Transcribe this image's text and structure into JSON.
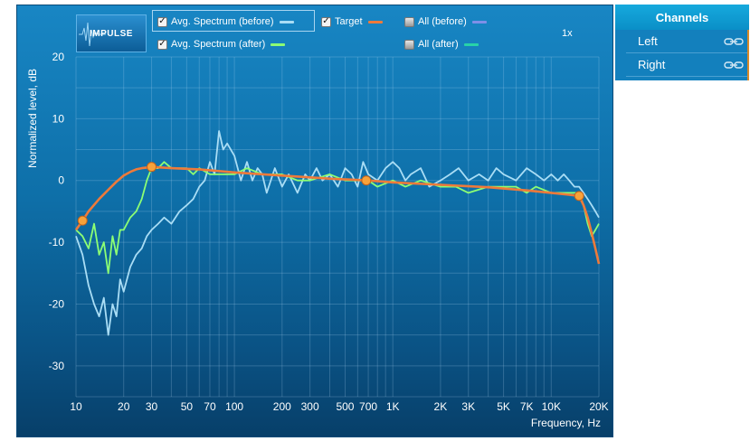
{
  "toolbar": {
    "impulse_label": "IMPULSE",
    "zoom_label": "1x"
  },
  "legend": [
    {
      "label": "Avg. Spectrum (before)",
      "checked": true,
      "color": "#a9ddf5"
    },
    {
      "label": "Target",
      "checked": true,
      "color": "#ee7a3a"
    },
    {
      "label": "All (before)",
      "checked": false,
      "color": "#7f8fe8"
    },
    {
      "label": "Avg. Spectrum (after)",
      "checked": true,
      "color": "#8cff74"
    },
    {
      "label": "All (after)",
      "checked": false,
      "color": "#28d2a8"
    }
  ],
  "channels": {
    "title": "Channels",
    "items": [
      {
        "label": "Left",
        "icon": "link-icon"
      },
      {
        "label": "Right",
        "icon": "link-icon"
      }
    ],
    "accent_color": "#d98a28"
  },
  "chart_data": {
    "type": "line",
    "xlabel": "Frequency, Hz",
    "ylabel": "Normalized level, dB",
    "x_scale": "log",
    "xlim": [
      10,
      20000
    ],
    "ylim": [
      -35,
      20
    ],
    "x_ticks": [
      10,
      20,
      30,
      50,
      70,
      100,
      200,
      300,
      500,
      700,
      1000,
      2000,
      3000,
      5000,
      7000,
      10000,
      20000
    ],
    "x_tick_labels": [
      "10",
      "20",
      "30",
      "50",
      "70",
      "100",
      "200",
      "300",
      "500",
      "700",
      "1K",
      "2K",
      "3K",
      "5K",
      "7K",
      "10K",
      "20K"
    ],
    "y_ticks": [
      20,
      10,
      0,
      -10,
      -20,
      -30
    ],
    "y_tick_labels": [
      "20",
      "10",
      "0",
      "-10",
      "-20",
      "-30"
    ],
    "grid": true,
    "series": [
      {
        "name": "Avg. Spectrum (before)",
        "color": "#a9ddf5",
        "x": [
          10,
          11,
          12,
          13,
          14,
          15,
          16,
          17,
          18,
          19,
          20,
          22,
          24,
          26,
          28,
          30,
          33,
          36,
          40,
          45,
          50,
          55,
          60,
          65,
          70,
          75,
          80,
          85,
          90,
          100,
          110,
          120,
          130,
          140,
          150,
          160,
          180,
          200,
          220,
          250,
          280,
          300,
          330,
          360,
          400,
          450,
          500,
          550,
          600,
          650,
          700,
          800,
          900,
          1000,
          1100,
          1200,
          1300,
          1500,
          1700,
          2000,
          2300,
          2600,
          3000,
          3500,
          4000,
          4500,
          5000,
          6000,
          7000,
          8000,
          9000,
          10000,
          11000,
          12000,
          13000,
          14000,
          15000,
          16000,
          17000,
          18000,
          19000,
          20000
        ],
        "values": [
          -9,
          -12,
          -17,
          -20,
          -22,
          -19,
          -25,
          -20,
          -22,
          -16,
          -18,
          -14,
          -12,
          -11,
          -9,
          -8,
          -7,
          -6,
          -7,
          -5,
          -4,
          -3,
          -1,
          0,
          3,
          1,
          8,
          5,
          6,
          4,
          0,
          3,
          0,
          2,
          1,
          -2,
          2,
          -1,
          1,
          -2,
          1,
          0,
          2,
          0,
          1,
          -1,
          2,
          1,
          -1,
          3,
          1,
          0,
          2,
          3,
          2,
          0,
          1,
          2,
          -1,
          0,
          1,
          2,
          0,
          1,
          0,
          2,
          1,
          0,
          2,
          1,
          0,
          1,
          0,
          1,
          0,
          -1,
          -1,
          -2,
          -3,
          -4,
          -5,
          -6
        ]
      },
      {
        "name": "Avg. Spectrum (after)",
        "color": "#8cff74",
        "x": [
          10,
          11,
          12,
          13,
          14,
          15,
          16,
          17,
          18,
          19,
          20,
          22,
          24,
          26,
          28,
          30,
          33,
          36,
          40,
          45,
          50,
          55,
          60,
          70,
          80,
          100,
          120,
          150,
          200,
          250,
          300,
          400,
          500,
          600,
          700,
          800,
          1000,
          1200,
          1500,
          2000,
          2500,
          3000,
          4000,
          5000,
          6000,
          7000,
          8000,
          10000,
          12000,
          14000,
          15000,
          16000,
          17000,
          18000,
          19000,
          20000
        ],
        "values": [
          -8,
          -9,
          -11,
          -7,
          -12,
          -10,
          -15,
          -9,
          -12,
          -8,
          -8,
          -6,
          -5,
          -3,
          0,
          2,
          2,
          3,
          2,
          2,
          2,
          1,
          2,
          1,
          1,
          1,
          2,
          1,
          1,
          0,
          0,
          1,
          0,
          0,
          0,
          -1,
          0,
          -1,
          0,
          -1,
          -1,
          -2,
          -1,
          -1,
          -1,
          -2,
          -1,
          -2,
          -2,
          -2,
          -2,
          -4,
          -7,
          -9,
          -8,
          -7
        ]
      },
      {
        "name": "Target",
        "color": "#ee7a3a",
        "x": [
          10,
          11,
          12,
          14,
          16,
          18,
          20,
          22,
          24,
          26,
          28,
          30,
          40,
          60,
          100,
          200,
          400,
          700,
          1000,
          2000,
          4000,
          7000,
          10000,
          13000,
          15000,
          16000,
          17000,
          18000,
          19000,
          20000
        ],
        "values": [
          -8,
          -6.5,
          -5,
          -3,
          -1.5,
          -0.2,
          0.8,
          1.4,
          1.8,
          2.0,
          2.1,
          2.2,
          2.0,
          1.8,
          1.3,
          0.8,
          0.3,
          0.0,
          -0.3,
          -0.7,
          -1.1,
          -1.6,
          -2.0,
          -2.3,
          -2.5,
          -4,
          -6,
          -8.5,
          -11,
          -13.5
        ]
      }
    ],
    "control_points": [
      {
        "x": 11,
        "y": -6.5
      },
      {
        "x": 30,
        "y": 2.2
      },
      {
        "x": 680,
        "y": 0
      },
      {
        "x": 15000,
        "y": -2.5
      }
    ]
  }
}
